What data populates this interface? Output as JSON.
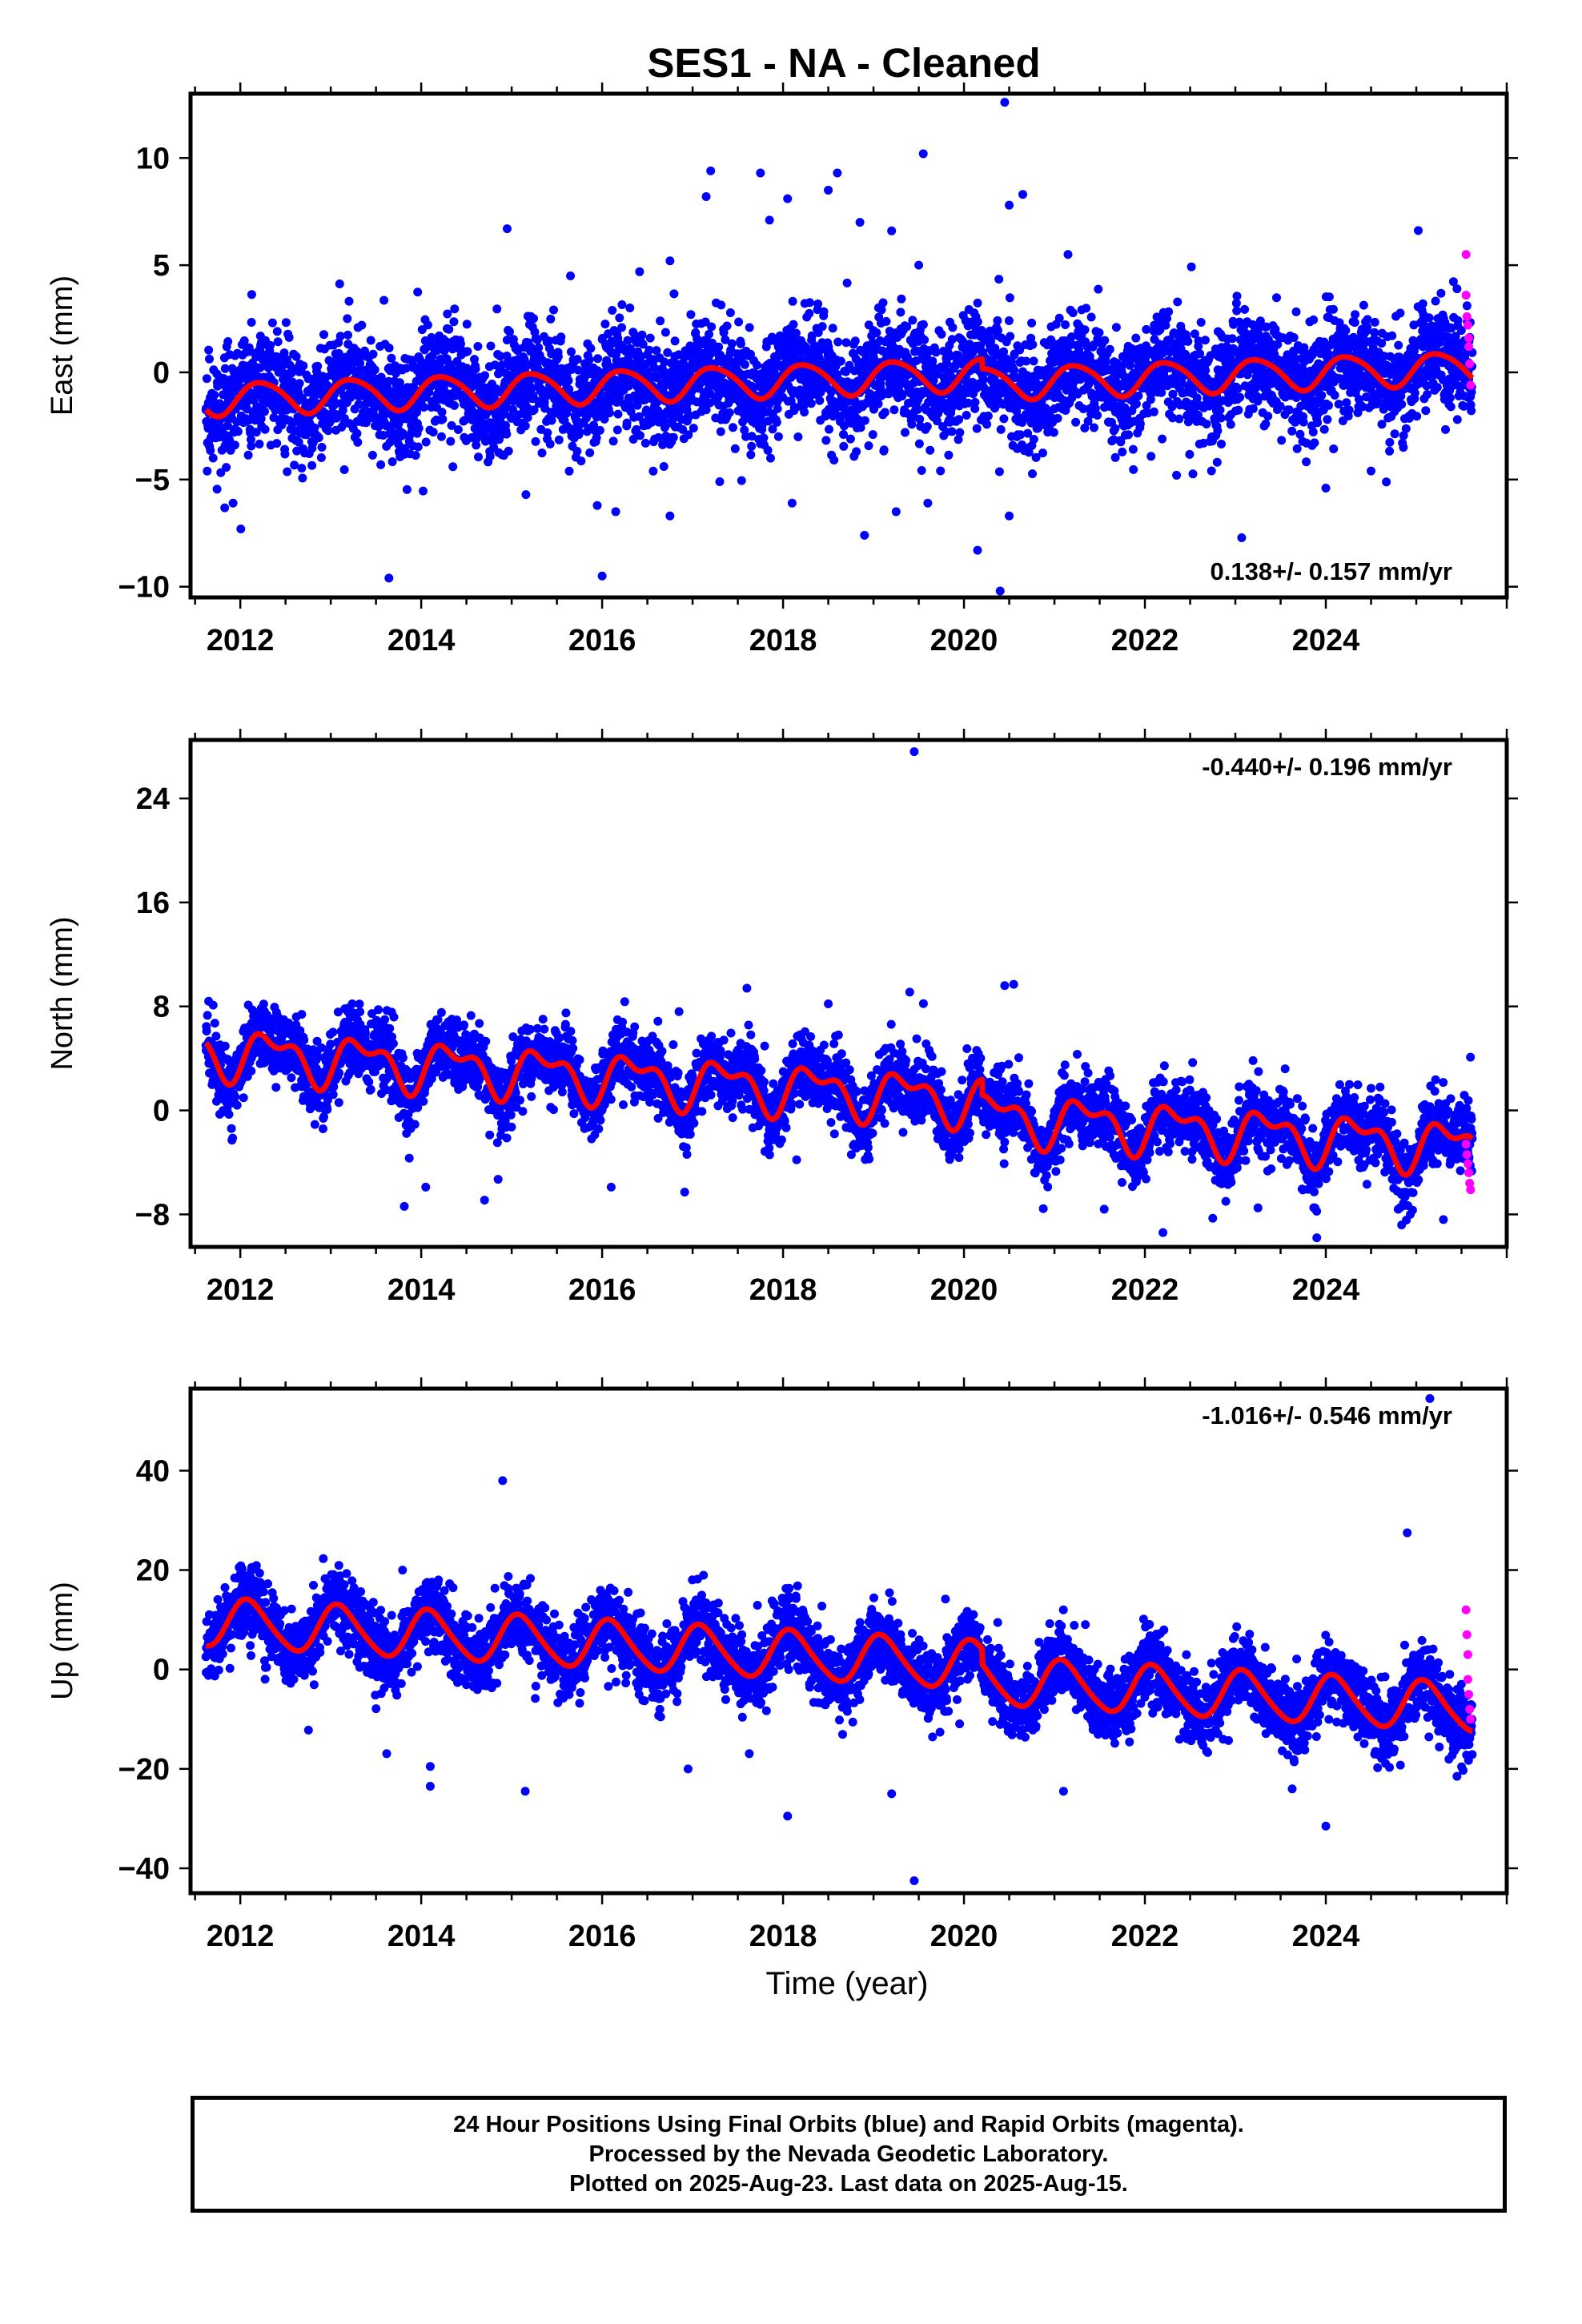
{
  "title": "SES1  - NA - Cleaned",
  "xlabel": "Time (year)",
  "footer": {
    "line1": "24 Hour Positions Using Final Orbits (blue) and Rapid Orbits (magenta).",
    "line2": "Processed by the Nevada Geodetic Laboratory.",
    "line3": "Plotted on 2025-Aug-23. Last data on 2025-Aug-15."
  },
  "colors": {
    "final_orbits": "#0000ff",
    "rapid_orbits": "#ff00ff",
    "model_fit": "#ff0000"
  },
  "chart_data": [
    {
      "type": "scatter",
      "ylabel": "East (mm)",
      "rate_label": "0.138+/- 0.157 mm/yr",
      "xlim": [
        2011.45,
        2026.0
      ],
      "ylim": [
        -10.5,
        13.0
      ],
      "x_ticks": [
        2012,
        2014,
        2016,
        2018,
        2020,
        2022,
        2024
      ],
      "x_tick_labels": [
        "2012",
        "2014",
        "2016",
        "2018",
        "2020",
        "2022",
        "2024"
      ],
      "y_ticks": [
        -10,
        -5,
        0,
        5,
        10
      ],
      "y_tick_labels": [
        "−10",
        "−5",
        "0",
        "5",
        "10"
      ],
      "data_start": 2011.62,
      "data_end": 2025.62,
      "model": {
        "ref_year": 2018.5,
        "offset": -0.3,
        "rate": 0.138,
        "annual_amp": 0.75,
        "annual_phase": 1.5,
        "semiannual_amp": 0.1,
        "semiannual_phase": 0.5,
        "steps": [
          [
            2020.2,
            -0.45
          ]
        ]
      },
      "noise_scale": 1.25,
      "series": [
        {
          "name": "Final Orbits",
          "values": [
            [
              2011.92,
              -6.1
            ],
            [
              2014.35,
              -4.4
            ],
            [
              2016.0,
              -9.5
            ],
            [
              2016.15,
              -6.5
            ],
            [
              2016.75,
              -6.7
            ],
            [
              2016.75,
              5.2
            ],
            [
              2017.15,
              8.2
            ],
            [
              2017.2,
              9.4
            ],
            [
              2017.3,
              -5.1
            ],
            [
              2017.75,
              9.3
            ],
            [
              2017.85,
              7.1
            ],
            [
              2018.05,
              8.1
            ],
            [
              2018.1,
              -6.1
            ],
            [
              2018.5,
              8.5
            ],
            [
              2018.6,
              9.3
            ],
            [
              2018.85,
              7.0
            ],
            [
              2018.9,
              -7.6
            ],
            [
              2019.2,
              6.6
            ],
            [
              2019.25,
              -6.5
            ],
            [
              2019.5,
              5.0
            ],
            [
              2019.55,
              10.2
            ],
            [
              2019.6,
              -6.1
            ],
            [
              2020.15,
              -8.3
            ],
            [
              2020.4,
              -10.2
            ],
            [
              2020.45,
              12.6
            ],
            [
              2020.5,
              -6.7
            ],
            [
              2020.5,
              7.8
            ],
            [
              2020.65,
              8.3
            ],
            [
              2021.15,
              5.5
            ],
            [
              2022.35,
              -4.8
            ],
            [
              2024.0,
              -5.4
            ],
            [
              2024.5,
              -4.6
            ],
            [
              2014.95,
              6.7
            ],
            [
              2015.65,
              4.5
            ],
            [
              2025.45,
              3.9
            ]
          ]
        },
        {
          "name": "Rapid Orbits",
          "values": [
            [
              2025.55,
              5.5
            ],
            [
              2025.55,
              3.6
            ],
            [
              2025.56,
              2.6
            ],
            [
              2025.57,
              2.2
            ],
            [
              2025.58,
              1.6
            ],
            [
              2025.58,
              1.2
            ],
            [
              2025.59,
              0.4
            ],
            [
              2025.6,
              -0.6
            ]
          ]
        }
      ]
    },
    {
      "type": "scatter",
      "ylabel": "North (mm)",
      "rate_label": "-0.440+/- 0.196 mm/yr",
      "xlim": [
        2011.45,
        2026.0
      ],
      "ylim": [
        -10.5,
        28.5
      ],
      "x_ticks": [
        2012,
        2014,
        2016,
        2018,
        2020,
        2022,
        2024
      ],
      "x_tick_labels": [
        "2012",
        "2014",
        "2016",
        "2018",
        "2020",
        "2022",
        "2024"
      ],
      "y_ticks": [
        -8,
        0,
        8,
        16,
        24
      ],
      "y_tick_labels": [
        "−8",
        "0",
        "8",
        "16",
        "24"
      ],
      "data_start": 2011.62,
      "data_end": 2025.62,
      "model": {
        "ref_year": 2018.5,
        "offset": 1.5,
        "rate": -0.44,
        "annual_amp": 1.6,
        "annual_phase": 2.2,
        "semiannual_amp": 0.9,
        "semiannual_phase": 1.8,
        "steps": [
          [
            2020.2,
            -1.2
          ]
        ]
      },
      "noise_scale": 1.3,
      "series": [
        {
          "name": "Final Orbits",
          "values": [
            [
              2011.65,
              8.4
            ],
            [
              2011.7,
              8.1
            ],
            [
              2014.05,
              -5.9
            ],
            [
              2014.55,
              7.3
            ],
            [
              2014.7,
              -6.9
            ],
            [
              2014.85,
              -5.3
            ],
            [
              2015.6,
              7.5
            ],
            [
              2016.1,
              -5.9
            ],
            [
              2016.85,
              7.6
            ],
            [
              2017.6,
              9.4
            ],
            [
              2018.15,
              -3.8
            ],
            [
              2018.5,
              8.2
            ],
            [
              2019.4,
              9.1
            ],
            [
              2019.45,
              27.6
            ],
            [
              2020.45,
              9.6
            ],
            [
              2020.55,
              9.7
            ],
            [
              2021.55,
              -7.6
            ],
            [
              2022.2,
              -9.4
            ],
            [
              2022.75,
              -8.3
            ],
            [
              2023.25,
              -7.5
            ],
            [
              2023.55,
              3.2
            ],
            [
              2023.9,
              -9.8
            ],
            [
              2024.5,
              1.7
            ],
            [
              2025.3,
              -8.4
            ]
          ]
        },
        {
          "name": "Rapid Orbits",
          "values": [
            [
              2025.55,
              -2.6
            ],
            [
              2025.56,
              -3.4
            ],
            [
              2025.57,
              -4.1
            ],
            [
              2025.58,
              -4.8
            ],
            [
              2025.59,
              -5.6
            ],
            [
              2025.6,
              -6.1
            ]
          ]
        }
      ]
    },
    {
      "type": "scatter",
      "ylabel": "Up (mm)",
      "rate_label": "-1.016+/- 0.546 mm/yr",
      "xlim": [
        2011.45,
        2026.0
      ],
      "ylim": [
        -45.0,
        56.5
      ],
      "x_ticks": [
        2012,
        2014,
        2016,
        2018,
        2020,
        2022,
        2024
      ],
      "x_tick_labels": [
        "2012",
        "2014",
        "2016",
        "2018",
        "2020",
        "2022",
        "2024"
      ],
      "y_ticks": [
        -40,
        -20,
        0,
        20,
        40
      ],
      "y_tick_labels": [
        "−40",
        "−20",
        "0",
        "20",
        "40"
      ],
      "data_start": 2011.62,
      "data_end": 2025.62,
      "model": {
        "ref_year": 2018.5,
        "offset": 2.5,
        "rate": -1.016,
        "annual_amp": 4.8,
        "annual_phase": 0.6,
        "semiannual_amp": 0.6,
        "semiannual_phase": 0.0,
        "steps": [
          [
            2020.2,
            -3.0
          ]
        ]
      },
      "noise_scale": 3.6,
      "series": [
        {
          "name": "Final Orbits",
          "values": [
            [
              2014.1,
              -19.5
            ],
            [
              2014.1,
              -23.5
            ],
            [
              2014.9,
              38.0
            ],
            [
              2015.15,
              -24.5
            ],
            [
              2018.05,
              -29.5
            ],
            [
              2019.2,
              -25.0
            ],
            [
              2019.45,
              -42.5
            ],
            [
              2024.0,
              -31.5
            ],
            [
              2024.9,
              27.5
            ],
            [
              2025.15,
              54.5
            ],
            [
              2025.45,
              -21.5
            ],
            [
              2016.95,
              -20.0
            ],
            [
              2021.1,
              -24.5
            ]
          ]
        },
        {
          "name": "Rapid Orbits",
          "values": [
            [
              2025.55,
              12.0
            ],
            [
              2025.56,
              7.0
            ],
            [
              2025.57,
              3.0
            ],
            [
              2025.57,
              -2.0
            ],
            [
              2025.58,
              -5.0
            ],
            [
              2025.59,
              -8.0
            ],
            [
              2025.6,
              -10.0
            ]
          ]
        }
      ]
    }
  ]
}
